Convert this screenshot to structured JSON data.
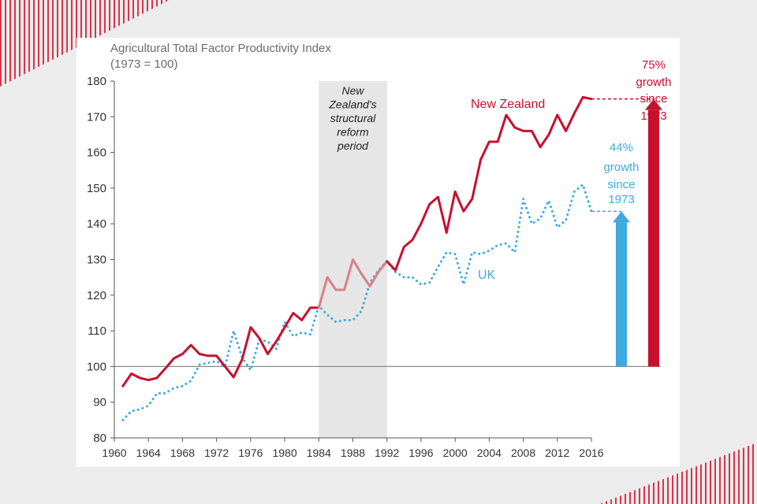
{
  "chart_data": {
    "type": "line",
    "title": "Agricultural Total Factor Productivity Index",
    "subtitle": "(1973 = 100)",
    "xlim": [
      1960,
      2016
    ],
    "ylim": [
      80,
      180
    ],
    "x_ticks": [
      1960,
      1964,
      1968,
      1972,
      1976,
      1980,
      1984,
      1988,
      1992,
      1996,
      2000,
      2004,
      2008,
      2012,
      2016
    ],
    "y_ticks": [
      80,
      90,
      100,
      110,
      120,
      130,
      140,
      150,
      160,
      170,
      180
    ],
    "reference_line": 100,
    "shaded_region": {
      "from": 1984,
      "to": 1992,
      "label": [
        "New",
        "Zealand's",
        "structural",
        "reform",
        "period"
      ]
    },
    "series": [
      {
        "name": "New Zealand",
        "color": "#c8102e",
        "reform_color": "#d98088",
        "style": "solid",
        "x": [
          1961,
          1962,
          1963,
          1964,
          1965,
          1966,
          1967,
          1968,
          1969,
          1970,
          1971,
          1972,
          1973,
          1974,
          1975,
          1976,
          1977,
          1978,
          1979,
          1980,
          1981,
          1982,
          1983,
          1984,
          1985,
          1986,
          1987,
          1988,
          1989,
          1990,
          1991,
          1992,
          1993,
          1994,
          1995,
          1996,
          1997,
          1998,
          1999,
          2000,
          2001,
          2002,
          2003,
          2004,
          2005,
          2006,
          2007,
          2008,
          2009,
          2010,
          2011,
          2012,
          2013,
          2014,
          2015,
          2016
        ],
        "values": [
          94.5,
          98,
          96.8,
          96.2,
          96.8,
          99.5,
          102.3,
          103.5,
          106,
          103.5,
          103,
          103,
          100,
          97,
          102,
          111,
          108,
          103.5,
          107,
          111,
          115,
          113,
          116.5,
          116.5,
          125,
          121.5,
          121.5,
          130,
          126,
          122.5,
          126.5,
          129.5,
          127,
          133.5,
          135.5,
          140,
          145.5,
          147.5,
          137.5,
          149,
          143.5,
          147,
          158,
          163,
          163,
          170.5,
          167,
          166,
          166,
          161.5,
          165,
          170.5,
          166,
          171,
          175.5,
          175
        ]
      },
      {
        "name": "UK",
        "color": "#3fa9e0",
        "style": "dotted",
        "x": [
          1961,
          1962,
          1963,
          1964,
          1965,
          1966,
          1967,
          1968,
          1969,
          1970,
          1971,
          1972,
          1973,
          1974,
          1975,
          1976,
          1977,
          1978,
          1979,
          1980,
          1981,
          1982,
          1983,
          1984,
          1985,
          1986,
          1987,
          1988,
          1989,
          1990,
          1991,
          1992,
          1993,
          1994,
          1995,
          1996,
          1997,
          1998,
          1999,
          2000,
          2001,
          2002,
          2003,
          2004,
          2005,
          2006,
          2007,
          2008,
          2009,
          2010,
          2011,
          2012,
          2013,
          2014,
          2015,
          2016
        ],
        "values": [
          85,
          87.5,
          88,
          89,
          92.5,
          92.5,
          94,
          94.5,
          96,
          100.5,
          101,
          101.5,
          100,
          110,
          102.5,
          99,
          107.5,
          107,
          105,
          112.5,
          108.5,
          109.5,
          109,
          117,
          114.5,
          112.5,
          113,
          113,
          115.5,
          123.5,
          127,
          129.5,
          126.5,
          125,
          125,
          123,
          123.5,
          128,
          132,
          131.5,
          123,
          132,
          131.5,
          132.5,
          134,
          134.5,
          132,
          147,
          140,
          141.5,
          146.5,
          139,
          141,
          149,
          151,
          143.5
        ]
      }
    ],
    "annotations": [
      {
        "series": "New Zealand",
        "label": "New Zealand"
      },
      {
        "series": "UK",
        "label": "UK"
      }
    ],
    "growth_arrows": [
      {
        "series": "UK",
        "from": 100,
        "to": 143.5,
        "color": "#3fa9e0",
        "text": [
          "44%",
          "growth",
          "since",
          "1973"
        ]
      },
      {
        "series": "New Zealand",
        "from": 100,
        "to": 175,
        "color": "#c8102e",
        "text": [
          "75%",
          "growth",
          "since",
          "1973"
        ]
      }
    ]
  }
}
